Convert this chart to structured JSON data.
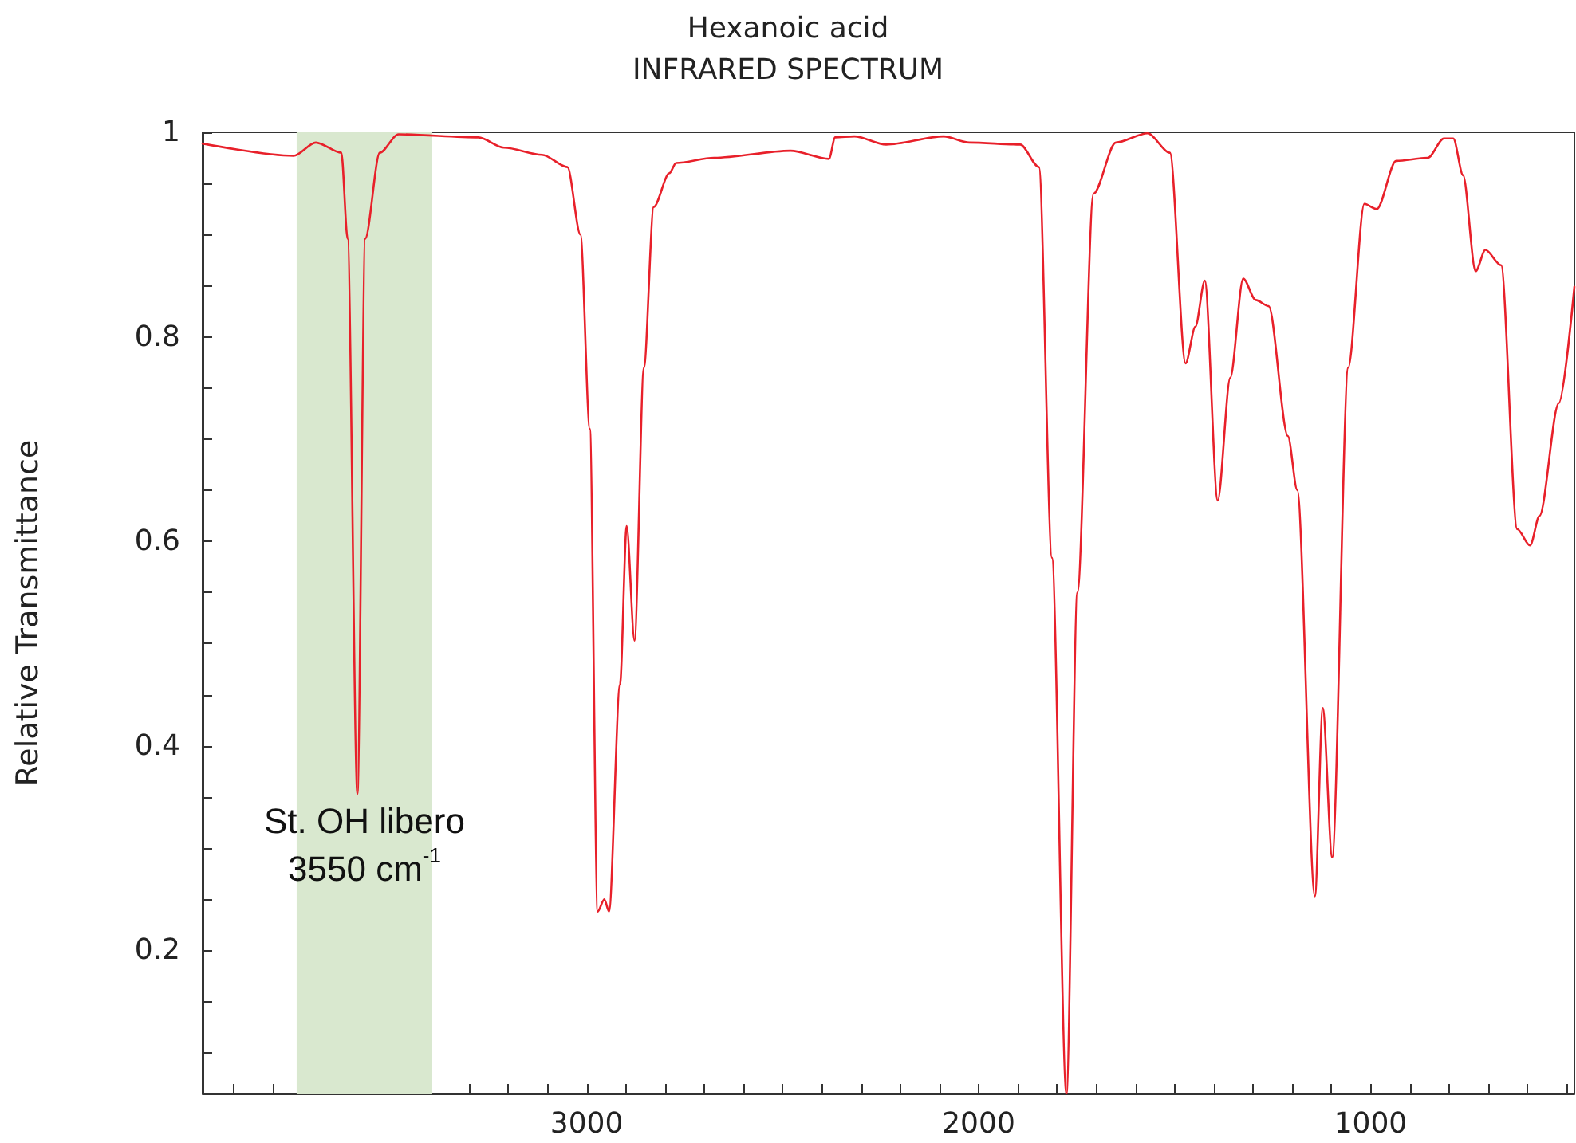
{
  "chart_data": {
    "type": "line",
    "title": "Hexanoic acid",
    "subtitle": "INFRARED SPECTRUM",
    "ylabel": "Relative Transmittance",
    "x": [
      3980,
      3748,
      3691,
      3626,
      3610,
      3585,
      3565,
      3528,
      3480,
      3276,
      3211,
      3114,
      3049,
      3016,
      2992,
      2972,
      2955,
      2943,
      2915,
      2898,
      2878,
      2854,
      2829,
      2789,
      2772,
      2675,
      2480,
      2382,
      2366,
      2317,
      2236,
      2089,
      2024,
      1894,
      1846,
      1813,
      1776,
      1748,
      1707,
      1650,
      1569,
      1512,
      1472,
      1447,
      1423,
      1390,
      1358,
      1325,
      1293,
      1260,
      1211,
      1187,
      1142,
      1122,
      1098,
      1057,
      1016,
      984,
      935,
      854,
      813,
      789,
      764,
      732,
      707,
      667,
      626,
      593,
      569,
      520,
      480
    ],
    "series": [
      {
        "color": "#e8202a",
        "values": [
          0.989,
          0.977,
          0.99,
          0.98,
          0.896,
          0.353,
          0.896,
          0.98,
          0.998,
          0.995,
          0.985,
          0.978,
          0.966,
          0.9,
          0.71,
          0.238,
          0.25,
          0.238,
          0.46,
          0.615,
          0.503,
          0.77,
          0.927,
          0.96,
          0.97,
          0.975,
          0.982,
          0.974,
          0.995,
          0.996,
          0.988,
          0.996,
          0.99,
          0.988,
          0.966,
          0.584,
          0.06,
          0.55,
          0.94,
          0.99,
          0.999,
          0.98,
          0.774,
          0.81,
          0.855,
          0.64,
          0.76,
          0.857,
          0.836,
          0.83,
          0.703,
          0.65,
          0.253,
          0.437,
          0.291,
          0.77,
          0.93,
          0.925,
          0.972,
          0.975,
          0.994,
          0.994,
          0.958,
          0.864,
          0.885,
          0.87,
          0.612,
          0.596,
          0.625,
          0.735,
          0.849
        ]
      }
    ],
    "xlim": [
      3980,
      480
    ],
    "xticks": [
      {
        "value": 3900,
        "label": null
      },
      {
        "value": 3800,
        "label": null
      },
      {
        "value": 3700,
        "label": null
      },
      {
        "value": 3600,
        "label": null
      },
      {
        "value": 3500,
        "label": null
      },
      {
        "value": 3400,
        "label": null
      },
      {
        "value": 3300,
        "label": null
      },
      {
        "value": 3200,
        "label": null
      },
      {
        "value": 3100,
        "label": null
      },
      3000,
      {
        "value": 2900,
        "label": null
      },
      {
        "value": 2800,
        "label": null
      },
      {
        "value": 2700,
        "label": null
      },
      {
        "value": 2600,
        "label": null
      },
      {
        "value": 2500,
        "label": null
      },
      {
        "value": 2400,
        "label": null
      },
      {
        "value": 2300,
        "label": null
      },
      {
        "value": 2200,
        "label": null
      },
      {
        "value": 2100,
        "label": null
      },
      2000,
      {
        "value": 1900,
        "label": null
      },
      {
        "value": 1800,
        "label": null
      },
      {
        "value": 1700,
        "label": null
      },
      {
        "value": 1600,
        "label": null
      },
      {
        "value": 1500,
        "label": null
      },
      {
        "value": 1400,
        "label": null
      },
      {
        "value": 1300,
        "label": null
      },
      {
        "value": 1200,
        "label": null
      },
      {
        "value": 1100,
        "label": null
      },
      1000,
      {
        "value": 900,
        "label": null
      },
      {
        "value": 800,
        "label": null
      },
      {
        "value": 700,
        "label": null
      },
      {
        "value": 600,
        "label": null
      },
      {
        "value": 500,
        "label": null
      }
    ],
    "ylim": [
      0.06,
      1
    ],
    "yticks": [
      {
        "value": 0.1,
        "label": null
      },
      {
        "value": 0.15,
        "label": null
      },
      0.2,
      {
        "value": 0.25,
        "label": null
      },
      {
        "value": 0.3,
        "label": null
      },
      {
        "value": 0.35,
        "label": null
      },
      0.4,
      {
        "value": 0.45,
        "label": null
      },
      {
        "value": 0.5,
        "label": null
      },
      {
        "value": 0.55,
        "label": null
      },
      0.6,
      {
        "value": 0.65,
        "label": null
      },
      {
        "value": 0.7,
        "label": null
      },
      {
        "value": 0.75,
        "label": null
      },
      0.8,
      {
        "value": 0.85,
        "label": null
      },
      {
        "value": 0.9,
        "label": null
      },
      {
        "value": 0.95,
        "label": null
      },
      1
    ],
    "bands": [
      {
        "axis": "x",
        "from": 3740,
        "to": 3394,
        "color": "#d9e8cf"
      }
    ],
    "annotations": [
      "St. OH libero\n3550 cm$^{-1}$"
    ],
    "grid": false,
    "marker": "none",
    "line_style": "solid"
  }
}
